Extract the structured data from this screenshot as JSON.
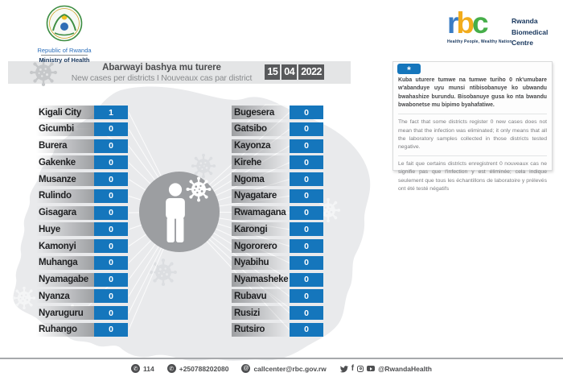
{
  "branding": {
    "ministry": {
      "line1": "Republic of Rwanda",
      "line2": "Ministry of Health"
    },
    "rbc": {
      "letter_r": "r",
      "letter_b": "b",
      "letter_c": "c",
      "name_lines": [
        "Rwanda",
        "Biomedical",
        "Centre"
      ],
      "tagline": "Healthy People, Wealthy Nation"
    }
  },
  "header": {
    "title": "Abarwayi bashya mu turere",
    "subtitle": "New cases per districts  I  Nouveaux cas par district",
    "date": {
      "day": "15",
      "month": "04",
      "year": "2022"
    }
  },
  "notice": {
    "tab": "*",
    "kinyarwanda": "Kuba uturere tumwe na tumwe turiho 0 nk'umubare w'abanduye  uyu munsi ntibisobanuye ko ubwandu bwahashize burundu. Bisobanuye gusa ko nta bwandu bwabonetse mu bipimo byahafatiwe.",
    "english": "The fact that some districts register 0 new cases does not mean that the infection was eliminated; it only means that all the laboratory samples collected in those districts tested negative.",
    "french": "Le fait que certains districts enregistrent 0 nouveaux cas ne signifie pas que l'infection y est éliminée; cela indique seulement que tous les échantillons de laboratoire y prélevés ont été testé négatifs"
  },
  "districts": {
    "left": [
      {
        "name": "Kigali City",
        "value": "1"
      },
      {
        "name": "Gicumbi",
        "value": "0"
      },
      {
        "name": "Burera",
        "value": "0"
      },
      {
        "name": "Gakenke",
        "value": "0"
      },
      {
        "name": "Musanze",
        "value": "0"
      },
      {
        "name": "Rulindo",
        "value": "0"
      },
      {
        "name": "Gisagara",
        "value": "0"
      },
      {
        "name": "Huye",
        "value": "0"
      },
      {
        "name": "Kamonyi",
        "value": "0"
      },
      {
        "name": "Muhanga",
        "value": "0"
      },
      {
        "name": "Nyamagabe",
        "value": "0"
      },
      {
        "name": "Nyanza",
        "value": "0"
      },
      {
        "name": "Nyaruguru",
        "value": "0"
      },
      {
        "name": "Ruhango",
        "value": "0"
      }
    ],
    "right": [
      {
        "name": "Bugesera",
        "value": "0"
      },
      {
        "name": "Gatsibo",
        "value": "0"
      },
      {
        "name": "Kayonza",
        "value": "0"
      },
      {
        "name": "Kirehe",
        "value": "0"
      },
      {
        "name": "Ngoma",
        "value": "0"
      },
      {
        "name": "Nyagatare",
        "value": "0"
      },
      {
        "name": "Rwamagana",
        "value": "0"
      },
      {
        "name": "Karongi",
        "value": "0"
      },
      {
        "name": "Ngororero",
        "value": "0"
      },
      {
        "name": "Nyabihu",
        "value": "0"
      },
      {
        "name": "Nyamasheke",
        "value": "0"
      },
      {
        "name": "Rubavu",
        "value": "0"
      },
      {
        "name": "Rusizi",
        "value": "0"
      },
      {
        "name": "Rutsiro",
        "value": "0"
      }
    ]
  },
  "footer": {
    "hotline": "114",
    "phone": "+250788202080",
    "email": "callcenter@rbc.gov.rw",
    "social_handle": "@RwandaHealth"
  },
  "colors": {
    "accent_blue": "#1576bc",
    "band_gray": "#e4e5e6",
    "date_box_gray": "#58595b",
    "map_gray": "#e9eaec",
    "emblem_gray": "#9c9ea1"
  },
  "chart_data": {
    "type": "table",
    "title": "Abarwayi bashya mu turere / New cases per districts / Nouveaux cas par district",
    "date": "15/04/2022",
    "categories": [
      "Kigali City",
      "Gicumbi",
      "Burera",
      "Gakenke",
      "Musanze",
      "Rulindo",
      "Gisagara",
      "Huye",
      "Kamonyi",
      "Muhanga",
      "Nyamagabe",
      "Nyanza",
      "Nyaruguru",
      "Ruhango",
      "Bugesera",
      "Gatsibo",
      "Kayonza",
      "Kirehe",
      "Ngoma",
      "Nyagatare",
      "Rwamagana",
      "Karongi",
      "Ngororero",
      "Nyabihu",
      "Nyamasheke",
      "Rubavu",
      "Rusizi",
      "Rutsiro"
    ],
    "values": [
      1,
      0,
      0,
      0,
      0,
      0,
      0,
      0,
      0,
      0,
      0,
      0,
      0,
      0,
      0,
      0,
      0,
      0,
      0,
      0,
      0,
      0,
      0,
      0,
      0,
      0,
      0,
      0
    ]
  }
}
